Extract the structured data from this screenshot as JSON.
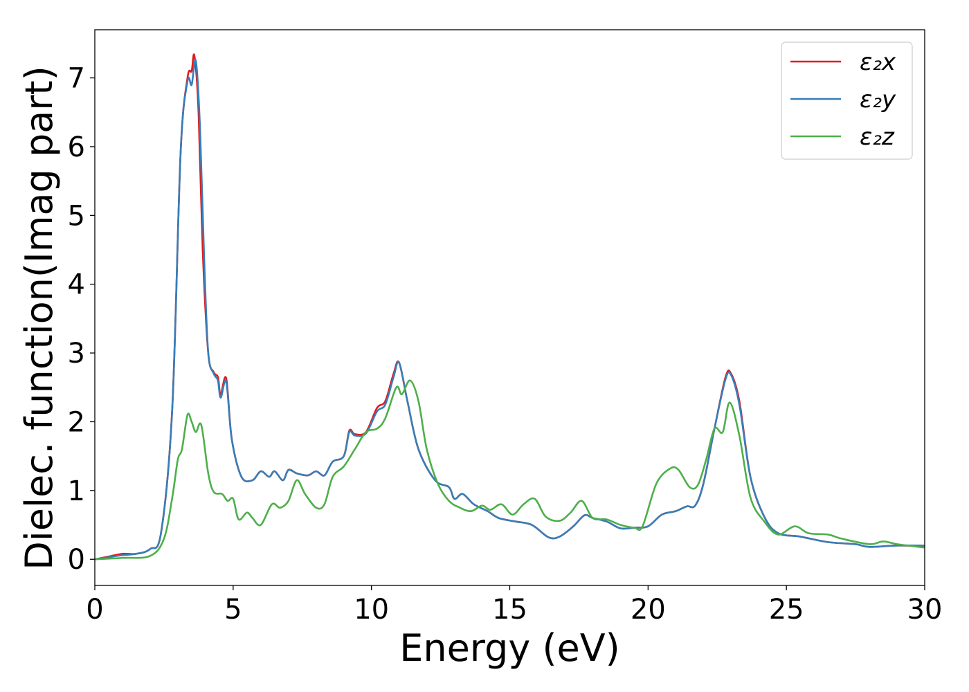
{
  "chart_data": {
    "type": "line",
    "xlabel": "Energy (eV)",
    "ylabel": "Dielec. function(Imag part)",
    "xlim": [
      0,
      30
    ],
    "ylim": [
      -0.38,
      7.7
    ],
    "xticks": [
      0,
      5,
      10,
      15,
      20,
      25,
      30
    ],
    "xtick_labels": [
      "0",
      "5",
      "10",
      "15",
      "20",
      "25",
      "30"
    ],
    "yticks": [
      0,
      1,
      2,
      3,
      4,
      5,
      6,
      7
    ],
    "ytick_labels": [
      "0",
      "1",
      "2",
      "3",
      "4",
      "5",
      "6",
      "7"
    ],
    "grid": false,
    "legend_position": "top-right",
    "series": [
      {
        "name": "ε₂x",
        "color": "#e41a1c",
        "points": [
          [
            0,
            0
          ],
          [
            0.5,
            0.04
          ],
          [
            1,
            0.08
          ],
          [
            1.5,
            0.08
          ],
          [
            2,
            0.15
          ],
          [
            2.4,
            0.4
          ],
          [
            2.8,
            2.2
          ],
          [
            3.1,
            5.9
          ],
          [
            3.35,
            7.0
          ],
          [
            3.5,
            7.1
          ],
          [
            3.6,
            7.32
          ],
          [
            3.75,
            6.5
          ],
          [
            3.9,
            4.5
          ],
          [
            4.1,
            3.0
          ],
          [
            4.3,
            2.72
          ],
          [
            4.45,
            2.65
          ],
          [
            4.55,
            2.4
          ],
          [
            4.75,
            2.63
          ],
          [
            4.95,
            1.75
          ],
          [
            5.3,
            1.2
          ],
          [
            5.7,
            1.15
          ],
          [
            6,
            1.28
          ],
          [
            6.3,
            1.2
          ],
          [
            6.5,
            1.28
          ],
          [
            6.8,
            1.15
          ],
          [
            7.0,
            1.3
          ],
          [
            7.3,
            1.25
          ],
          [
            7.7,
            1.22
          ],
          [
            8,
            1.28
          ],
          [
            8.3,
            1.22
          ],
          [
            8.6,
            1.42
          ],
          [
            9,
            1.5
          ],
          [
            9.2,
            1.87
          ],
          [
            9.4,
            1.82
          ],
          [
            9.8,
            1.85
          ],
          [
            10.2,
            2.2
          ],
          [
            10.5,
            2.3
          ],
          [
            10.8,
            2.7
          ],
          [
            11.0,
            2.86
          ],
          [
            11.3,
            2.3
          ],
          [
            11.7,
            1.6
          ],
          [
            12.3,
            1.15
          ],
          [
            12.8,
            1.05
          ],
          [
            13.0,
            0.88
          ],
          [
            13.3,
            0.95
          ],
          [
            13.7,
            0.8
          ],
          [
            14.2,
            0.7
          ],
          [
            14.6,
            0.6
          ],
          [
            15.2,
            0.55
          ],
          [
            15.8,
            0.5
          ],
          [
            16.4,
            0.32
          ],
          [
            16.8,
            0.33
          ],
          [
            17.3,
            0.48
          ],
          [
            17.7,
            0.64
          ],
          [
            18.0,
            0.6
          ],
          [
            18.5,
            0.55
          ],
          [
            19.0,
            0.45
          ],
          [
            19.5,
            0.46
          ],
          [
            20.0,
            0.48
          ],
          [
            20.5,
            0.65
          ],
          [
            21.0,
            0.7
          ],
          [
            21.4,
            0.77
          ],
          [
            21.7,
            0.78
          ],
          [
            22.0,
            1.1
          ],
          [
            22.4,
            1.9
          ],
          [
            22.8,
            2.65
          ],
          [
            23.0,
            2.7
          ],
          [
            23.3,
            2.3
          ],
          [
            23.7,
            1.2
          ],
          [
            24.2,
            0.62
          ],
          [
            24.7,
            0.38
          ],
          [
            25.5,
            0.33
          ],
          [
            26.5,
            0.25
          ],
          [
            27.5,
            0.22
          ],
          [
            28,
            0.18
          ],
          [
            29,
            0.2
          ],
          [
            30,
            0.19
          ]
        ]
      },
      {
        "name": "ε₂y",
        "color": "#377eb8",
        "points": [
          [
            0,
            0
          ],
          [
            0.5,
            0.03
          ],
          [
            1,
            0.06
          ],
          [
            1.5,
            0.08
          ],
          [
            2,
            0.15
          ],
          [
            2.4,
            0.4
          ],
          [
            2.8,
            2.2
          ],
          [
            3.1,
            5.9
          ],
          [
            3.35,
            6.95
          ],
          [
            3.5,
            6.9
          ],
          [
            3.65,
            7.25
          ],
          [
            3.8,
            6.3
          ],
          [
            3.95,
            4.4
          ],
          [
            4.1,
            3.0
          ],
          [
            4.3,
            2.7
          ],
          [
            4.45,
            2.6
          ],
          [
            4.55,
            2.35
          ],
          [
            4.75,
            2.58
          ],
          [
            4.95,
            1.75
          ],
          [
            5.3,
            1.2
          ],
          [
            5.7,
            1.15
          ],
          [
            6,
            1.28
          ],
          [
            6.3,
            1.2
          ],
          [
            6.5,
            1.28
          ],
          [
            6.8,
            1.15
          ],
          [
            7.0,
            1.3
          ],
          [
            7.3,
            1.25
          ],
          [
            7.7,
            1.22
          ],
          [
            8,
            1.28
          ],
          [
            8.3,
            1.22
          ],
          [
            8.6,
            1.42
          ],
          [
            9,
            1.5
          ],
          [
            9.2,
            1.85
          ],
          [
            9.4,
            1.8
          ],
          [
            9.8,
            1.83
          ],
          [
            10.2,
            2.15
          ],
          [
            10.5,
            2.25
          ],
          [
            10.8,
            2.65
          ],
          [
            11.0,
            2.86
          ],
          [
            11.3,
            2.3
          ],
          [
            11.7,
            1.6
          ],
          [
            12.3,
            1.15
          ],
          [
            12.8,
            1.05
          ],
          [
            13.0,
            0.88
          ],
          [
            13.3,
            0.95
          ],
          [
            13.7,
            0.8
          ],
          [
            14.2,
            0.7
          ],
          [
            14.6,
            0.6
          ],
          [
            15.2,
            0.55
          ],
          [
            15.8,
            0.5
          ],
          [
            16.4,
            0.32
          ],
          [
            16.8,
            0.33
          ],
          [
            17.3,
            0.48
          ],
          [
            17.7,
            0.64
          ],
          [
            18.0,
            0.6
          ],
          [
            18.5,
            0.55
          ],
          [
            19.0,
            0.45
          ],
          [
            19.5,
            0.46
          ],
          [
            20.0,
            0.48
          ],
          [
            20.5,
            0.65
          ],
          [
            21.0,
            0.7
          ],
          [
            21.4,
            0.77
          ],
          [
            21.7,
            0.78
          ],
          [
            22.0,
            1.1
          ],
          [
            22.4,
            1.9
          ],
          [
            22.8,
            2.62
          ],
          [
            23.0,
            2.68
          ],
          [
            23.3,
            2.25
          ],
          [
            23.7,
            1.2
          ],
          [
            24.2,
            0.62
          ],
          [
            24.7,
            0.38
          ],
          [
            25.5,
            0.33
          ],
          [
            26.5,
            0.25
          ],
          [
            27.5,
            0.22
          ],
          [
            28,
            0.18
          ],
          [
            29,
            0.2
          ],
          [
            30,
            0.2
          ]
        ]
      },
      {
        "name": "ε₂z",
        "color": "#4daf4a",
        "points": [
          [
            0,
            0
          ],
          [
            1,
            0.02
          ],
          [
            2,
            0.05
          ],
          [
            2.5,
            0.3
          ],
          [
            2.8,
            0.9
          ],
          [
            3.0,
            1.45
          ],
          [
            3.15,
            1.6
          ],
          [
            3.35,
            2.1
          ],
          [
            3.5,
            2.0
          ],
          [
            3.65,
            1.85
          ],
          [
            3.85,
            1.95
          ],
          [
            4.1,
            1.25
          ],
          [
            4.3,
            0.98
          ],
          [
            4.6,
            0.95
          ],
          [
            4.8,
            0.85
          ],
          [
            5.0,
            0.88
          ],
          [
            5.2,
            0.58
          ],
          [
            5.5,
            0.68
          ],
          [
            5.7,
            0.6
          ],
          [
            6.0,
            0.5
          ],
          [
            6.4,
            0.8
          ],
          [
            6.7,
            0.75
          ],
          [
            7.0,
            0.85
          ],
          [
            7.3,
            1.15
          ],
          [
            7.6,
            0.95
          ],
          [
            8.0,
            0.75
          ],
          [
            8.3,
            0.8
          ],
          [
            8.6,
            1.2
          ],
          [
            9.0,
            1.35
          ],
          [
            9.4,
            1.6
          ],
          [
            9.8,
            1.85
          ],
          [
            10.2,
            1.9
          ],
          [
            10.5,
            2.05
          ],
          [
            10.9,
            2.5
          ],
          [
            11.1,
            2.4
          ],
          [
            11.4,
            2.6
          ],
          [
            11.7,
            2.3
          ],
          [
            12.0,
            1.6
          ],
          [
            12.4,
            1.1
          ],
          [
            12.8,
            0.85
          ],
          [
            13.2,
            0.75
          ],
          [
            13.6,
            0.7
          ],
          [
            14.0,
            0.78
          ],
          [
            14.3,
            0.72
          ],
          [
            14.7,
            0.8
          ],
          [
            15.1,
            0.65
          ],
          [
            15.5,
            0.8
          ],
          [
            15.9,
            0.88
          ],
          [
            16.3,
            0.62
          ],
          [
            16.8,
            0.56
          ],
          [
            17.2,
            0.68
          ],
          [
            17.6,
            0.85
          ],
          [
            18.0,
            0.6
          ],
          [
            18.5,
            0.58
          ],
          [
            19.0,
            0.5
          ],
          [
            19.5,
            0.46
          ],
          [
            19.8,
            0.48
          ],
          [
            20.3,
            1.1
          ],
          [
            20.8,
            1.32
          ],
          [
            21.1,
            1.3
          ],
          [
            21.5,
            1.05
          ],
          [
            21.8,
            1.08
          ],
          [
            22.1,
            1.45
          ],
          [
            22.4,
            1.9
          ],
          [
            22.7,
            1.85
          ],
          [
            22.95,
            2.28
          ],
          [
            23.3,
            1.8
          ],
          [
            23.7,
            0.9
          ],
          [
            24.2,
            0.55
          ],
          [
            24.7,
            0.36
          ],
          [
            25.3,
            0.48
          ],
          [
            25.8,
            0.38
          ],
          [
            26.5,
            0.36
          ],
          [
            27,
            0.3
          ],
          [
            28,
            0.22
          ],
          [
            28.5,
            0.26
          ],
          [
            29,
            0.22
          ],
          [
            30,
            0.17
          ]
        ]
      }
    ]
  }
}
